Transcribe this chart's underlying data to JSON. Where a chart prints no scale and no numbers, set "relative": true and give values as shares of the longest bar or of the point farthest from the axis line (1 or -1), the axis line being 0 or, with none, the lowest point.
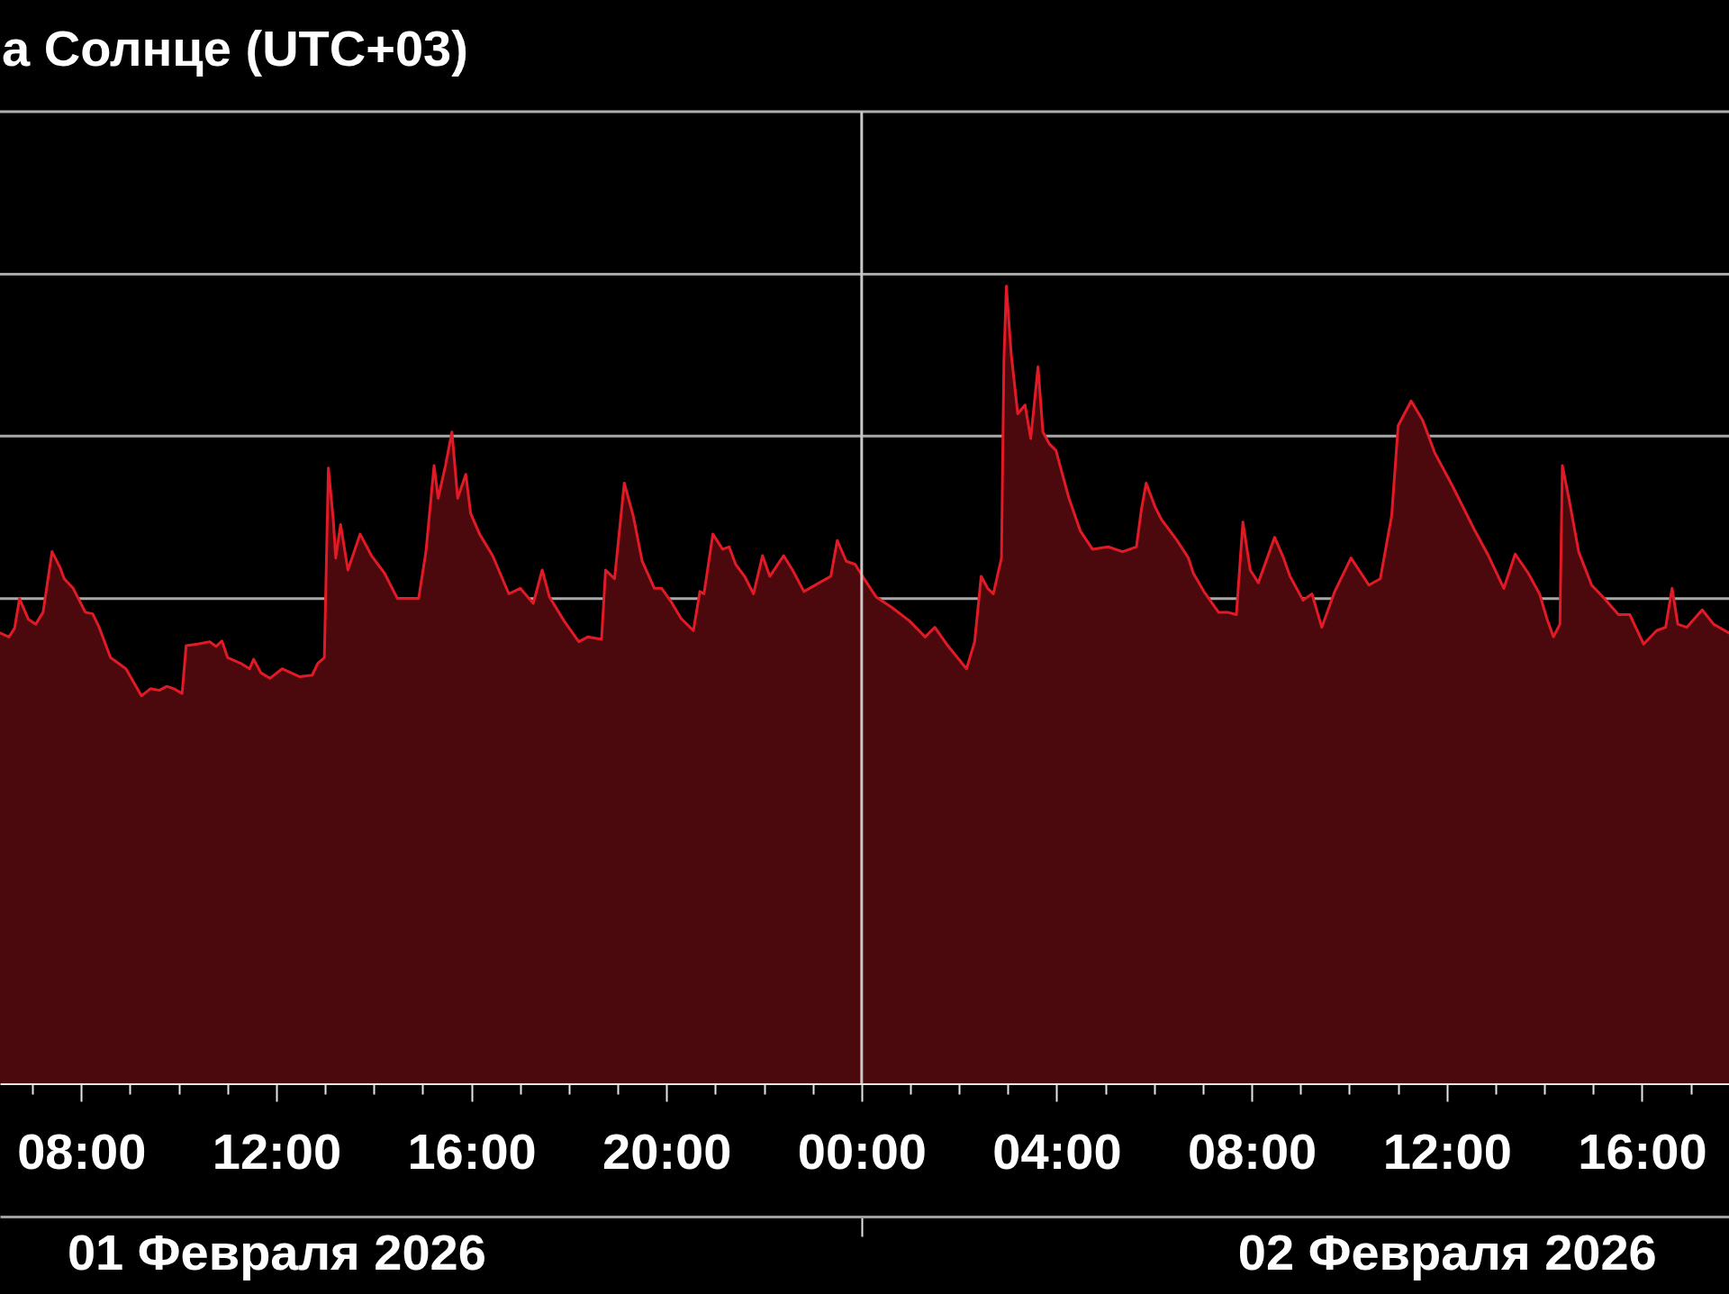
{
  "chart_data": {
    "type": "area",
    "title": "а Солнце (UTC+03)",
    "relative": true,
    "color": "#e21a26",
    "x": [
      "2026-02-01T06:20",
      "2026-02-01T06:31",
      "2026-02-01T06:38",
      "2026-02-01T06:44",
      "2026-02-01T06:55",
      "2026-02-01T07:04",
      "2026-02-01T07:13",
      "2026-02-01T07:24",
      "2026-02-01T07:34",
      "2026-02-01T07:39",
      "2026-02-01T07:50",
      "2026-02-01T08:05",
      "2026-02-01T08:14",
      "2026-02-01T08:22",
      "2026-02-01T08:36",
      "2026-02-01T08:55",
      "2026-02-01T09:14",
      "2026-02-01T09:25",
      "2026-02-01T09:36",
      "2026-02-01T09:45",
      "2026-02-01T09:54",
      "2026-02-01T10:04",
      "2026-02-01T10:09",
      "2026-02-01T10:23",
      "2026-02-01T10:38",
      "2026-02-01T10:46",
      "2026-02-01T10:53",
      "2026-02-01T11:00",
      "2026-02-01T11:16",
      "2026-02-01T11:27",
      "2026-02-01T11:32",
      "2026-02-01T11:41",
      "2026-02-01T11:52",
      "2026-02-01T12:07",
      "2026-02-01T12:18",
      "2026-02-01T12:29",
      "2026-02-01T12:44",
      "2026-02-01T12:51",
      "2026-02-01T12:59",
      "2026-02-01T13:04",
      "2026-02-01T13:10",
      "2026-02-01T13:13",
      "2026-02-01T13:19",
      "2026-02-01T13:28",
      "2026-02-01T13:43",
      "2026-02-01T13:57",
      "2026-02-01T14:13",
      "2026-02-01T14:29",
      "2026-02-01T14:55",
      "2026-02-01T15:04",
      "2026-02-01T15:14",
      "2026-02-01T15:19",
      "2026-02-01T15:28",
      "2026-02-01T15:36",
      "2026-02-01T15:43",
      "2026-02-01T15:53",
      "2026-02-01T15:59",
      "2026-02-01T16:10",
      "2026-02-01T16:26",
      "2026-02-01T16:46",
      "2026-02-01T17:00",
      "2026-02-01T17:16",
      "2026-02-01T17:27",
      "2026-02-01T17:36",
      "2026-02-01T17:54",
      "2026-02-01T18:12",
      "2026-02-01T18:23",
      "2026-02-01T18:40",
      "2026-02-01T18:45",
      "2026-02-01T18:56",
      "2026-02-01T19:08",
      "2026-02-01T19:19",
      "2026-02-01T19:30",
      "2026-02-01T19:45",
      "2026-02-01T19:54",
      "2026-02-01T20:07",
      "2026-02-01T20:18",
      "2026-02-01T20:33",
      "2026-02-01T20:41",
      "2026-02-01T20:46",
      "2026-02-01T20:57",
      "2026-02-01T21:09",
      "2026-02-01T21:17",
      "2026-02-01T21:25",
      "2026-02-01T21:36",
      "2026-02-01T21:47",
      "2026-02-01T21:58",
      "2026-02-01T22:07",
      "2026-02-01T22:24",
      "2026-02-01T22:35",
      "2026-02-01T22:49",
      "2026-02-01T23:08",
      "2026-02-01T23:22",
      "2026-02-01T23:30",
      "2026-02-01T23:41",
      "2026-02-01T23:52",
      "2026-02-02T00:03",
      "2026-02-02T00:18",
      "2026-02-02T00:37",
      "2026-02-02T00:59",
      "2026-02-02T01:18",
      "2026-02-02T01:30",
      "2026-02-02T01:46",
      "2026-02-02T02:09",
      "2026-02-02T02:19",
      "2026-02-02T02:27",
      "2026-02-02T02:35",
      "2026-02-02T02:42",
      "2026-02-02T02:52",
      "2026-02-02T02:55",
      "2026-02-02T02:58",
      "2026-02-02T03:04",
      "2026-02-02T03:12",
      "2026-02-02T03:21",
      "2026-02-02T03:28",
      "2026-02-02T03:37",
      "2026-02-02T03:43",
      "2026-02-02T03:51",
      "2026-02-02T03:59",
      "2026-02-02T04:15",
      "2026-02-02T04:29",
      "2026-02-02T04:44",
      "2026-02-02T05:03",
      "2026-02-02T05:21",
      "2026-02-02T05:38",
      "2026-02-02T05:44",
      "2026-02-02T05:50",
      "2026-02-02T06:01",
      "2026-02-02T06:09",
      "2026-02-02T06:28",
      "2026-02-02T06:42",
      "2026-02-02T06:48",
      "2026-02-02T07:01",
      "2026-02-02T07:19",
      "2026-02-02T07:30",
      "2026-02-02T07:41",
      "2026-02-02T07:49",
      "2026-02-02T07:58",
      "2026-02-02T08:08",
      "2026-02-02T08:28",
      "2026-02-02T08:39",
      "2026-02-02T08:47",
      "2026-02-02T09:03",
      "2026-02-02T09:14",
      "2026-02-02T09:26",
      "2026-02-02T09:42",
      "2026-02-02T10:02",
      "2026-02-02T10:24",
      "2026-02-02T10:38",
      "2026-02-02T10:52",
      "2026-02-02T11:00",
      "2026-02-02T11:16",
      "2026-02-02T11:30",
      "2026-02-02T11:45",
      "2026-02-02T12:07",
      "2026-02-02T12:33",
      "2026-02-02T12:51",
      "2026-02-02T13:10",
      "2026-02-02T13:24",
      "2026-02-02T13:40",
      "2026-02-02T13:54",
      "2026-02-02T14:03",
      "2026-02-02T14:11",
      "2026-02-02T14:19",
      "2026-02-02T14:22",
      "2026-02-02T14:30",
      "2026-02-02T14:42",
      "2026-02-02T14:58",
      "2026-02-02T15:12",
      "2026-02-02T15:31",
      "2026-02-02T15:45",
      "2026-02-02T16:02",
      "2026-02-02T16:18",
      "2026-02-02T16:29",
      "2026-02-02T16:37",
      "2026-02-02T16:44",
      "2026-02-02T16:55",
      "2026-02-02T17:14",
      "2026-02-02T17:28",
      "2026-02-02T17:47"
    ],
    "values": [
      0.565,
      0.56,
      0.571,
      0.608,
      0.582,
      0.576,
      0.591,
      0.667,
      0.647,
      0.633,
      0.621,
      0.591,
      0.589,
      0.572,
      0.534,
      0.52,
      0.486,
      0.495,
      0.493,
      0.498,
      0.495,
      0.489,
      0.549,
      0.551,
      0.554,
      0.548,
      0.555,
      0.534,
      0.527,
      0.52,
      0.532,
      0.515,
      0.508,
      0.52,
      0.515,
      0.51,
      0.512,
      0.527,
      0.534,
      0.772,
      0.707,
      0.659,
      0.701,
      0.644,
      0.689,
      0.662,
      0.64,
      0.608,
      0.608,
      0.667,
      0.775,
      0.734,
      0.775,
      0.817,
      0.734,
      0.764,
      0.715,
      0.689,
      0.662,
      0.614,
      0.621,
      0.602,
      0.644,
      0.61,
      0.58,
      0.554,
      0.56,
      0.557,
      0.644,
      0.633,
      0.753,
      0.712,
      0.655,
      0.621,
      0.621,
      0.602,
      0.583,
      0.568,
      0.617,
      0.614,
      0.689,
      0.67,
      0.673,
      0.651,
      0.636,
      0.614,
      0.662,
      0.636,
      0.662,
      0.644,
      0.617,
      0.628,
      0.636,
      0.681,
      0.655,
      0.651,
      0.633,
      0.61,
      0.597,
      0.58,
      0.56,
      0.572,
      0.549,
      0.52,
      0.554,
      0.636,
      0.621,
      0.614,
      0.659,
      0.907,
      1,
      0.915,
      0.84,
      0.851,
      0.809,
      0.899,
      0.817,
      0.802,
      0.794,
      0.734,
      0.693,
      0.67,
      0.673,
      0.667,
      0.673,
      0.719,
      0.753,
      0.723,
      0.707,
      0.681,
      0.659,
      0.64,
      0.617,
      0.591,
      0.591,
      0.588,
      0.704,
      0.644,
      0.628,
      0.685,
      0.659,
      0.636,
      0.606,
      0.614,
      0.572,
      0.617,
      0.659,
      0.625,
      0.633,
      0.712,
      0.825,
      0.856,
      0.832,
      0.791,
      0.749,
      0.696,
      0.662,
      0.621,
      0.664,
      0.64,
      0.614,
      0.583,
      0.56,
      0.576,
      0.775,
      0.734,
      0.667,
      0.625,
      0.61,
      0.588,
      0.588,
      0.551,
      0.568,
      0.572,
      0.621,
      0.576,
      0.572,
      0.594,
      0.576,
      0.565
    ],
    "xlim": [
      "2026-02-01T06:20",
      "2026-02-02T17:47"
    ],
    "xticks": [
      {
        "value": "2026-02-01T07:00",
        "label": null
      },
      {
        "value": "2026-02-01T08:00",
        "label": "08:00"
      },
      {
        "value": "2026-02-01T09:00",
        "label": null
      },
      {
        "value": "2026-02-01T10:00",
        "label": null
      },
      {
        "value": "2026-02-01T11:00",
        "label": null
      },
      {
        "value": "2026-02-01T12:00",
        "label": "12:00"
      },
      {
        "value": "2026-02-01T13:00",
        "label": null
      },
      {
        "value": "2026-02-01T14:00",
        "label": null
      },
      {
        "value": "2026-02-01T15:00",
        "label": null
      },
      {
        "value": "2026-02-01T16:00",
        "label": "16:00"
      },
      {
        "value": "2026-02-01T17:00",
        "label": null
      },
      {
        "value": "2026-02-01T18:00",
        "label": null
      },
      {
        "value": "2026-02-01T19:00",
        "label": null
      },
      {
        "value": "2026-02-01T20:00",
        "label": "20:00"
      },
      {
        "value": "2026-02-01T21:00",
        "label": null
      },
      {
        "value": "2026-02-01T22:00",
        "label": null
      },
      {
        "value": "2026-02-01T23:00",
        "label": null
      },
      {
        "value": "2026-02-02T00:00",
        "label": "00:00"
      },
      {
        "value": "2026-02-02T01:00",
        "label": null
      },
      {
        "value": "2026-02-02T02:00",
        "label": null
      },
      {
        "value": "2026-02-02T03:00",
        "label": null
      },
      {
        "value": "2026-02-02T04:00",
        "label": "04:00"
      },
      {
        "value": "2026-02-02T05:00",
        "label": null
      },
      {
        "value": "2026-02-02T06:00",
        "label": null
      },
      {
        "value": "2026-02-02T07:00",
        "label": null
      },
      {
        "value": "2026-02-02T08:00",
        "label": "08:00"
      },
      {
        "value": "2026-02-02T09:00",
        "label": null
      },
      {
        "value": "2026-02-02T10:00",
        "label": null
      },
      {
        "value": "2026-02-02T11:00",
        "label": null
      },
      {
        "value": "2026-02-02T12:00",
        "label": "12:00"
      },
      {
        "value": "2026-02-02T13:00",
        "label": null
      },
      {
        "value": "2026-02-02T14:00",
        "label": null
      },
      {
        "value": "2026-02-02T15:00",
        "label": null
      },
      {
        "value": "2026-02-02T16:00",
        "label": "16:00"
      },
      {
        "value": "2026-02-02T17:00",
        "label": null
      }
    ],
    "x2lim": [
      "2026-02-01T06:20",
      "2026-02-02T17:47"
    ],
    "x2ticks": [
      {
        "value": "2026-02-01T12:00",
        "label": "01 Февраля 2026"
      },
      {
        "value": "2026-02-02T00:00",
        "label": null
      },
      {
        "value": "2026-02-02T12:00",
        "label": "02 Февраля 2026"
      }
    ],
    "ref_lines": [
      {
        "axis": "y",
        "value": 1.219,
        "color": "#b0b0b0"
      },
      {
        "axis": "y",
        "value": 1.015,
        "color": "#a8a8a8"
      },
      {
        "axis": "y",
        "value": 0.812,
        "color": "#a8a8a8"
      },
      {
        "axis": "y",
        "value": 0.608,
        "color": "#a8a8a8"
      },
      {
        "axis": "x",
        "value": "2026-02-02T00:00",
        "color": "#c8c8c8"
      }
    ]
  }
}
